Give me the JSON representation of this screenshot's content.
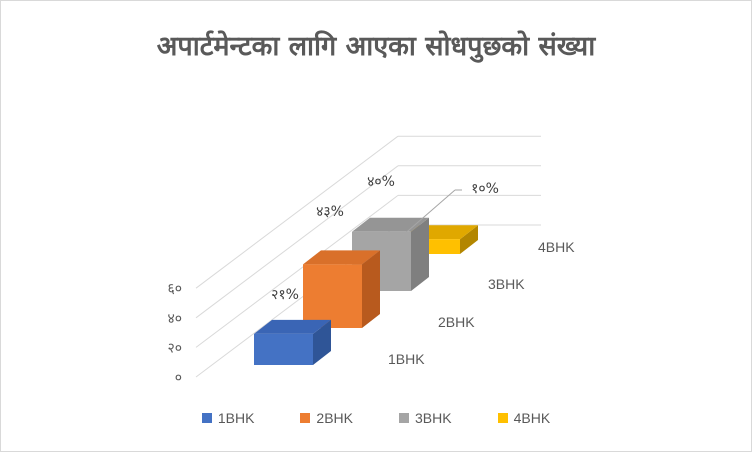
{
  "chart_data": {
    "type": "bar",
    "title": "अपार्टमेन्टका लागि आएका सोधपुछको संख्या",
    "categories": [
      "1BHK",
      "2BHK",
      "3BHK",
      "4BHK"
    ],
    "values": [
      21,
      43,
      40,
      10
    ],
    "data_labels": [
      "२१%",
      "४३%",
      "४०%",
      "१०%"
    ],
    "y_ticks": [
      "०",
      "२०",
      "४०",
      "६०"
    ],
    "ylim": [
      0,
      60
    ],
    "grid": true,
    "legend": "bottom",
    "colors": [
      "#4472c4",
      "#ed7d31",
      "#a5a5a5",
      "#ffc000"
    ],
    "side_colors": [
      "#2f5597",
      "#b85a1e",
      "#7f7f7f",
      "#b38600"
    ],
    "top_colors": [
      "#3a65b5",
      "#d9702a",
      "#959595",
      "#e0a800"
    ]
  }
}
